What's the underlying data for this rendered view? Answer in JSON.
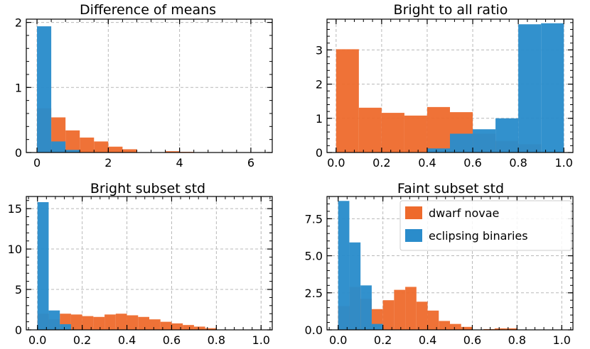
{
  "colors": {
    "dwarf_novae": "#ee6a2c",
    "eclipsing_binaries": "#2a8ccb",
    "grid": "#b8b8b8"
  },
  "legend": {
    "entries": [
      {
        "label": "dwarf novae",
        "series": "dwarf_novae"
      },
      {
        "label": "eclipsing binaries",
        "series": "eclipsing_binaries"
      }
    ]
  },
  "chart_data": [
    {
      "type": "bar",
      "title": "Difference of means",
      "xlim": [
        -0.3,
        6.6
      ],
      "ylim": [
        0,
        2.05
      ],
      "xticks": [
        0,
        2,
        4,
        6
      ],
      "xtick_labels": [
        "0",
        "2",
        "4",
        "6"
      ],
      "yticks": [
        0,
        1,
        2
      ],
      "ytick_labels": [
        "0",
        "1",
        "2"
      ],
      "legend": false,
      "series": [
        {
          "name": "dwarf novae",
          "key": "dwarf_novae",
          "bin_edges": [
            0,
            0.4,
            0.8,
            1.2,
            1.6,
            2.0,
            2.4,
            2.8,
            3.2,
            3.6,
            4.0,
            4.4
          ],
          "values": [
            0.68,
            0.54,
            0.34,
            0.23,
            0.17,
            0.09,
            0.05,
            0.0,
            0.0,
            0.02,
            0.01
          ]
        },
        {
          "name": "eclipsing binaries",
          "key": "eclipsing_binaries",
          "bin_edges": [
            0,
            0.4,
            0.8,
            1.2
          ],
          "values": [
            1.94,
            0.17,
            0.04
          ]
        }
      ]
    },
    {
      "type": "bar",
      "title": "Bright to all ratio",
      "xlim": [
        -0.04,
        1.04
      ],
      "ylim": [
        0,
        3.9
      ],
      "xticks": [
        0.0,
        0.2,
        0.4,
        0.6,
        0.8,
        1.0
      ],
      "xtick_labels": [
        "0.0",
        "0.2",
        "0.4",
        "0.6",
        "0.8",
        "1.0"
      ],
      "yticks": [
        0,
        1,
        2,
        3
      ],
      "ytick_labels": [
        "0",
        "1",
        "2",
        "3"
      ],
      "legend": false,
      "series": [
        {
          "name": "dwarf novae",
          "key": "dwarf_novae",
          "bin_edges": [
            0,
            0.1,
            0.2,
            0.3,
            0.4,
            0.5,
            0.6,
            0.7,
            0.8,
            0.9,
            1.0
          ],
          "values": [
            3.02,
            1.31,
            1.16,
            1.08,
            1.33,
            1.18,
            0.55,
            0.34,
            0.24,
            0.0
          ]
        },
        {
          "name": "eclipsing binaries",
          "key": "eclipsing_binaries",
          "bin_edges": [
            0,
            0.1,
            0.2,
            0.3,
            0.4,
            0.5,
            0.6,
            0.7,
            0.8,
            0.9,
            1.0
          ],
          "values": [
            0.0,
            0.0,
            0.0,
            0.0,
            0.12,
            0.55,
            0.68,
            1.0,
            3.75,
            3.78
          ]
        }
      ]
    },
    {
      "type": "bar",
      "title": "Bright subset std",
      "xlim": [
        -0.05,
        1.05
      ],
      "ylim": [
        0,
        16.5
      ],
      "xticks": [
        0.0,
        0.2,
        0.4,
        0.6,
        0.8,
        1.0
      ],
      "xtick_labels": [
        "0.0",
        "0.2",
        "0.4",
        "0.6",
        "0.8",
        "1.0"
      ],
      "yticks": [
        0,
        5,
        10,
        15
      ],
      "ytick_labels": [
        "0",
        "5",
        "10",
        "15"
      ],
      "legend": false,
      "series": [
        {
          "name": "dwarf novae",
          "key": "dwarf_novae",
          "bin_edges": [
            0,
            0.05,
            0.1,
            0.15,
            0.2,
            0.25,
            0.3,
            0.35,
            0.4,
            0.45,
            0.5,
            0.55,
            0.6,
            0.65,
            0.7,
            0.75,
            0.8
          ],
          "values": [
            2.0,
            1.3,
            2.0,
            1.9,
            1.7,
            1.6,
            1.9,
            2.0,
            1.8,
            1.6,
            1.3,
            1.0,
            0.8,
            0.6,
            0.4,
            0.2
          ]
        },
        {
          "name": "eclipsing binaries",
          "key": "eclipsing_binaries",
          "bin_edges": [
            0,
            0.05,
            0.1,
            0.15
          ],
          "values": [
            15.8,
            2.4,
            0.7
          ]
        }
      ]
    },
    {
      "type": "bar",
      "title": "Faint subset std",
      "xlim": [
        -0.05,
        1.05
      ],
      "ylim": [
        0,
        9.0
      ],
      "xticks": [
        0.0,
        0.2,
        0.4,
        0.6,
        0.8,
        1.0
      ],
      "xtick_labels": [
        "0.0",
        "0.2",
        "0.4",
        "0.6",
        "0.8",
        "1.0"
      ],
      "yticks": [
        0,
        2.5,
        5.0,
        7.5
      ],
      "ytick_labels": [
        "0.0",
        "2.5",
        "5.0",
        "7.5"
      ],
      "legend": true,
      "legend_position": "top-right",
      "series": [
        {
          "name": "dwarf novae",
          "key": "dwarf_novae",
          "bin_edges": [
            0,
            0.05,
            0.1,
            0.15,
            0.2,
            0.25,
            0.3,
            0.35,
            0.4,
            0.45,
            0.5,
            0.55,
            0.6,
            0.65,
            0.7,
            0.75,
            0.8
          ],
          "values": [
            1.6,
            2.9,
            2.1,
            1.4,
            2.0,
            2.7,
            2.9,
            1.9,
            1.3,
            0.6,
            0.4,
            0.2,
            0.0,
            0.05,
            0.1,
            0.1
          ]
        },
        {
          "name": "eclipsing binaries",
          "key": "eclipsing_binaries",
          "bin_edges": [
            0,
            0.05,
            0.1,
            0.15,
            0.2
          ],
          "values": [
            8.7,
            5.9,
            3.0,
            0.4
          ]
        }
      ]
    }
  ]
}
